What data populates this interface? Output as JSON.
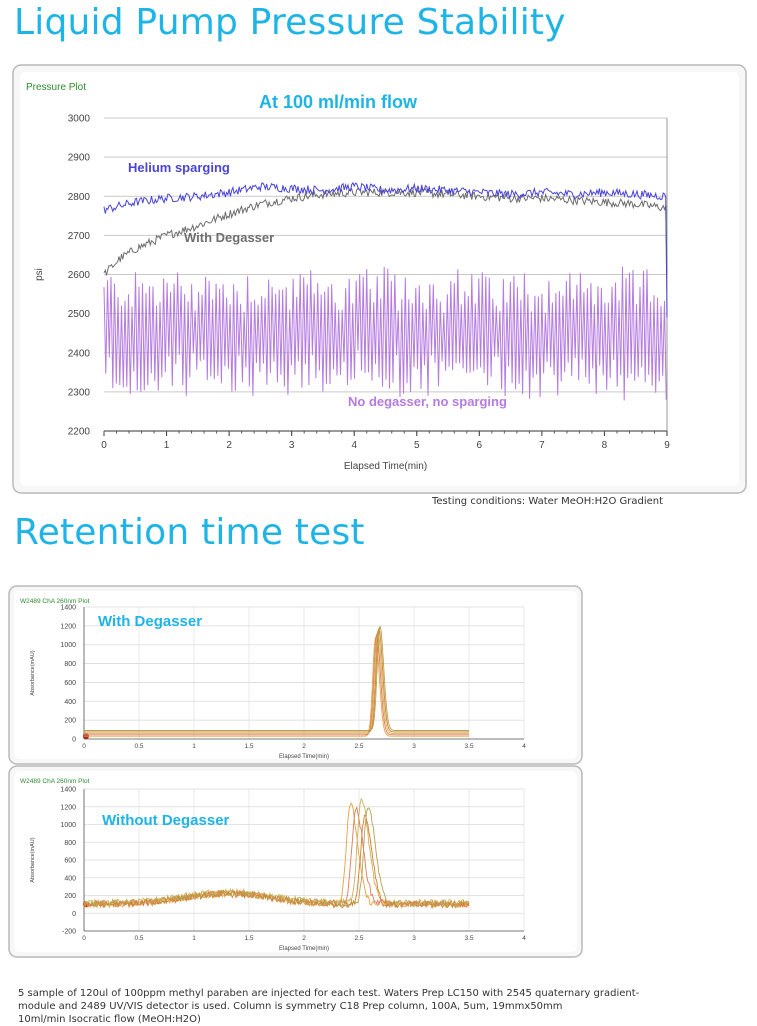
{
  "titles": {
    "pressure": "Liquid Pump Pressure Stability",
    "retention": "Retention time test"
  },
  "colors": {
    "title": "#1fb4e6",
    "helium": "#4a45d6",
    "degasser": "#6e6e6e",
    "none": "#b57be0",
    "accent_text": "#1fb4e6",
    "plot_tag": "#2e8b2e",
    "trace_series": [
      "#e8a23a",
      "#e07a5f",
      "#c9b458",
      "#d97b2a",
      "#b8a050"
    ]
  },
  "captions": {
    "conditions": "Testing conditions: Water MeOH:H2O Gradient",
    "footnote_1": "5 sample of 120ul of 100ppm methyl paraben are injected for each test.  Waters Prep LC150 with 2545 quaternary gradient-",
    "footnote_2": "module and 2489 UV/VIS detector is used.  Column is symmetry C18 Prep column, 100A, 5um, 19mmx50mm",
    "footnote_3": "10ml/min Isocratic flow (MeOH:H2O)"
  },
  "chart_data": [
    {
      "type": "line",
      "panel_label": "Pressure Plot",
      "title": "At 100 ml/min flow",
      "xlabel": "Elapsed Time(min)",
      "ylabel": "psi",
      "xlim": [
        0,
        9
      ],
      "ylim": [
        2200,
        3000
      ],
      "xticks": [
        0,
        1,
        2,
        3,
        4,
        5,
        6,
        7,
        8,
        9
      ],
      "yticks": [
        2200,
        2300,
        2400,
        2500,
        2600,
        2700,
        2800,
        2900,
        3000
      ],
      "grid": true,
      "series": [
        {
          "name": "Helium sparging",
          "color": "#4a45d6",
          "x": [
            0,
            0.5,
            1,
            1.5,
            2,
            2.5,
            3,
            3.5,
            4,
            4.5,
            5,
            5.5,
            6,
            6.5,
            7,
            7.5,
            8,
            8.5,
            9
          ],
          "values": [
            2765,
            2785,
            2795,
            2800,
            2810,
            2825,
            2820,
            2815,
            2825,
            2815,
            2820,
            2815,
            2810,
            2805,
            2810,
            2805,
            2810,
            2805,
            2800
          ]
        },
        {
          "name": "With Degasser",
          "color": "#6e6e6e",
          "x": [
            0,
            0.25,
            0.5,
            1,
            1.5,
            2,
            2.5,
            3,
            3.5,
            4,
            4.5,
            5,
            5.5,
            6,
            6.5,
            7,
            7.5,
            8,
            8.5,
            9
          ],
          "values": [
            2600,
            2640,
            2665,
            2700,
            2725,
            2755,
            2780,
            2795,
            2805,
            2810,
            2810,
            2810,
            2805,
            2800,
            2795,
            2795,
            2790,
            2785,
            2780,
            2770
          ]
        },
        {
          "name": "No degasser, no sparging",
          "color": "#b57be0",
          "x": [
            0,
            9
          ],
          "values": [
            2450,
            2450
          ],
          "range": [
            2300,
            2600
          ]
        }
      ]
    },
    {
      "type": "line",
      "panel_label": "W2489 ChA 260nm Plot",
      "title": "With Degasser",
      "xlabel": "Elapsed Time(min)",
      "ylabel": "Absorbance(mAU)",
      "xlim": [
        0,
        4
      ],
      "ylim": [
        0,
        1400
      ],
      "xticks": [
        0,
        0.5,
        1,
        1.5,
        2,
        2.5,
        3,
        3.5,
        4
      ],
      "yticks": [
        0,
        200,
        400,
        600,
        800,
        1000,
        1200,
        1400
      ],
      "peaks": [
        {
          "retention_time": 2.65,
          "height": 1050,
          "baseline": 30
        },
        {
          "retention_time": 2.66,
          "height": 1070,
          "baseline": 45
        },
        {
          "retention_time": 2.67,
          "height": 1090,
          "baseline": 60
        },
        {
          "retention_time": 2.68,
          "height": 1100,
          "baseline": 75
        },
        {
          "retention_time": 2.69,
          "height": 1110,
          "baseline": 90
        }
      ],
      "x_end": 3.5
    },
    {
      "type": "line",
      "panel_label": "W2489 ChA 260nm Plot",
      "title": "Without Degasser",
      "xlabel": "Elapsed Time(min)",
      "ylabel": "Absorbance(mAU)",
      "xlim": [
        0,
        4
      ],
      "ylim": [
        -200,
        1400
      ],
      "xticks": [
        0,
        0.5,
        1,
        1.5,
        2,
        2.5,
        3,
        3.5,
        4
      ],
      "yticks": [
        -200,
        0,
        200,
        400,
        600,
        800,
        1000,
        1200,
        1400
      ],
      "peaks": [
        {
          "retention_time": 2.42,
          "height": 1130,
          "baseline": 100
        },
        {
          "retention_time": 2.47,
          "height": 1060,
          "baseline": 110
        },
        {
          "retention_time": 2.52,
          "height": 1180,
          "baseline": 120
        },
        {
          "retention_time": 2.55,
          "height": 1000,
          "baseline": 95
        },
        {
          "retention_time": 2.58,
          "height": 1100,
          "baseline": 105
        }
      ],
      "x_end": 3.5
    }
  ]
}
